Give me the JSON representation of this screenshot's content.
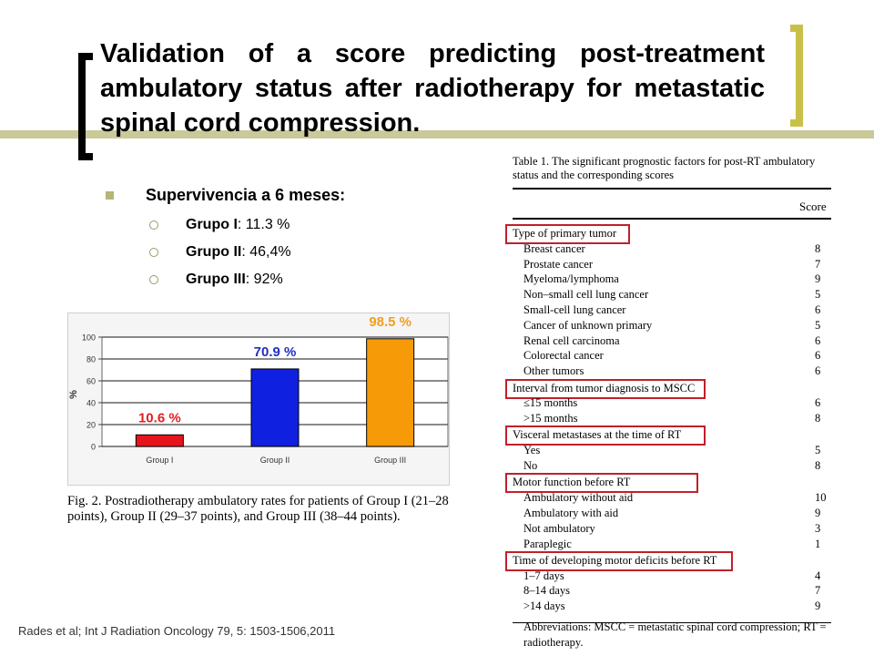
{
  "title": "Validation of a score predicting post-treatment ambulatory status after radiotherapy for metastatic spinal cord compression.",
  "bullets": {
    "main": "Supervivencia a 6 meses:",
    "items": [
      {
        "label": "Grupo I",
        "value": ": 11.3 %"
      },
      {
        "label": "Grupo II",
        "value": ": 46,4%"
      },
      {
        "label": "Grupo III",
        "value": ": 92%"
      }
    ]
  },
  "chart_data": {
    "type": "bar",
    "categories": [
      "Group I",
      "Group II",
      "Group III"
    ],
    "values": [
      10.6,
      70.9,
      98.5
    ],
    "data_labels": [
      "10.6 %",
      "70.9 %",
      "98.5 %"
    ],
    "bar_colors": [
      "#e8141c",
      "#1020e0",
      "#f79a08"
    ],
    "label_colors": [
      "#e02020",
      "#2030c0",
      "#f0a020"
    ],
    "ylabel": "%",
    "yticks": [
      0,
      20,
      40,
      60,
      80,
      100
    ],
    "ylim": [
      0,
      100
    ],
    "grid": true
  },
  "figure_caption": "Fig. 2. Postradiotherapy ambulatory rates for patients of Group I (21–28 points), Group II (29–37 points), and Group III (38–44 points).",
  "table": {
    "caption": "Table 1. The significant prognostic factors for post-RT ambulatory status and the corresponding scores",
    "score_header": "Score",
    "sections": [
      {
        "heading": "Type of primary tumor",
        "rows": [
          {
            "label": "Breast cancer",
            "score": "8"
          },
          {
            "label": "Prostate cancer",
            "score": "7"
          },
          {
            "label": "Myeloma/lymphoma",
            "score": "9"
          },
          {
            "label": "Non–small cell lung cancer",
            "score": "5"
          },
          {
            "label": "Small-cell lung cancer",
            "score": "6"
          },
          {
            "label": "Cancer of unknown primary",
            "score": "5"
          },
          {
            "label": "Renal cell carcinoma",
            "score": "6"
          },
          {
            "label": "Colorectal cancer",
            "score": "6"
          },
          {
            "label": "Other tumors",
            "score": "6"
          }
        ]
      },
      {
        "heading": "Interval from tumor diagnosis to MSCC",
        "rows": [
          {
            "label": "≤15 months",
            "score": "6"
          },
          {
            "label": ">15 months",
            "score": "8"
          }
        ]
      },
      {
        "heading": "Visceral metastases at the time of RT",
        "rows": [
          {
            "label": "Yes",
            "score": "5"
          },
          {
            "label": "No",
            "score": "8"
          }
        ]
      },
      {
        "heading": "Motor function before RT",
        "rows": [
          {
            "label": "Ambulatory without aid",
            "score": "10"
          },
          {
            "label": "Ambulatory with aid",
            "score": "9"
          },
          {
            "label": "Not ambulatory",
            "score": "3"
          },
          {
            "label": "Paraplegic",
            "score": "1"
          }
        ]
      },
      {
        "heading": "Time of developing motor deficits before RT",
        "rows": [
          {
            "label": "1–7 days",
            "score": "4"
          },
          {
            "label": "8–14 days",
            "score": "7"
          },
          {
            "label": ">14 days",
            "score": "9"
          }
        ]
      }
    ],
    "abbreviations": "Abbreviations: MSCC = metastatic spinal cord compression; RT = radiotherapy."
  },
  "reference": "Rades et al; Int J Radiation Oncology 79, 5: 1503-1506,2011"
}
